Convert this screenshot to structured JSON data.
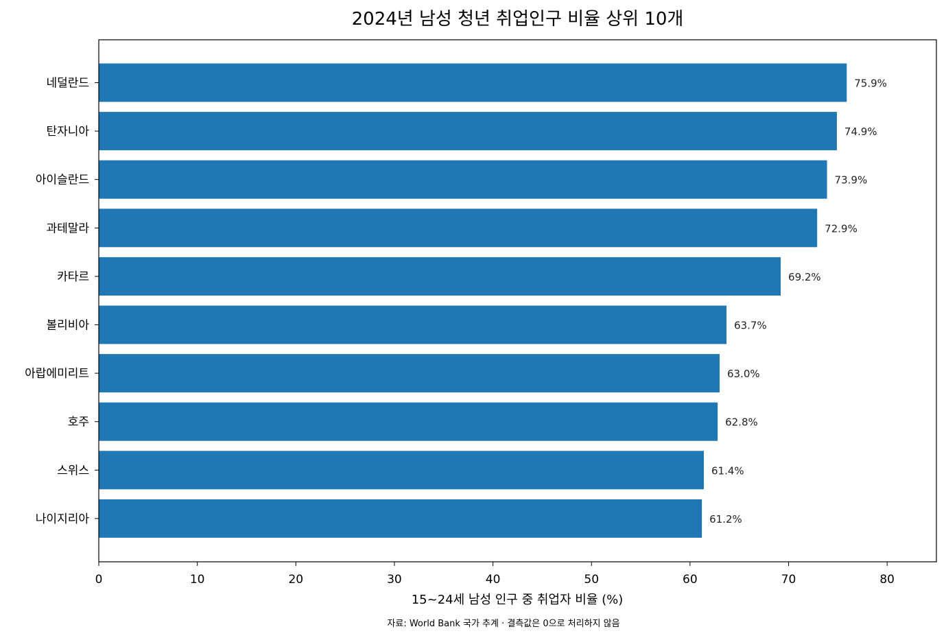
{
  "chart_data": {
    "type": "bar",
    "orientation": "horizontal",
    "title": "2024년 남성 청년 취업인구 비율 상위 10개",
    "xlabel": "15~24세 남성 인구 중 취업자 비율 (%)",
    "ylabel": "",
    "xlim": [
      0,
      85
    ],
    "xticks": [
      0,
      10,
      20,
      30,
      40,
      50,
      60,
      70,
      80
    ],
    "grid": false,
    "bar_color": "#1f77b4",
    "categories": [
      "네덜란드",
      "탄자니아",
      "아이슬란드",
      "과테말라",
      "카타르",
      "볼리비아",
      "아랍에미리트",
      "호주",
      "스위스",
      "나이지리아"
    ],
    "values": [
      75.9,
      74.9,
      73.9,
      72.9,
      69.2,
      63.7,
      63.0,
      62.8,
      61.4,
      61.2
    ],
    "data_labels": [
      "75.9%",
      "74.9%",
      "73.9%",
      "72.9%",
      "69.2%",
      "63.7%",
      "63.0%",
      "62.8%",
      "61.4%",
      "61.2%"
    ]
  },
  "source_note": "자료: World Bank 국가 추계 · 결측값은 0으로 처리하지 않음"
}
